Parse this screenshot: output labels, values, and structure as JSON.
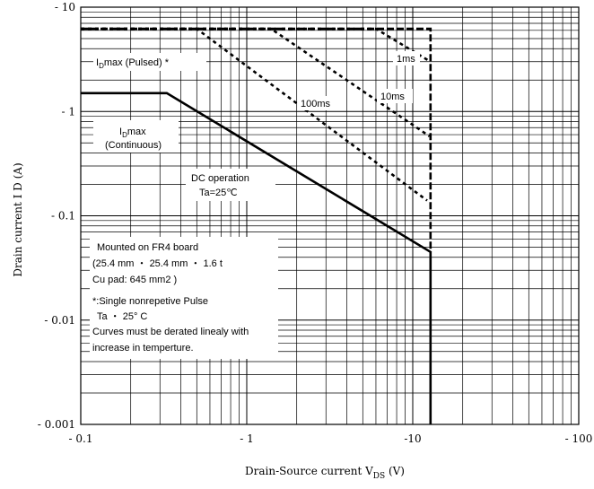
{
  "chart_data": {
    "type": "line",
    "xscale": "log",
    "yscale": "log",
    "xlim": [
      0.1,
      100
    ],
    "ylim": [
      0.001,
      10
    ],
    "grid": true,
    "xlabel_main": "Drain-Source current V",
    "xlabel_sub": "DS",
    "xlabel_unit": " (V)",
    "ylabel": "Drain current  I D (A)",
    "x_ticks": [
      {
        "value": 0.1,
        "label": "- 0.1"
      },
      {
        "value": 1,
        "label": "- 1"
      },
      {
        "value": 10,
        "label": "-10"
      },
      {
        "value": 100,
        "label": "- 100"
      }
    ],
    "y_ticks": [
      {
        "value": 10,
        "label": "- 10"
      },
      {
        "value": 1,
        "label": "- 1"
      },
      {
        "value": 0.1,
        "label": "- 0.1"
      },
      {
        "value": 0.01,
        "label": "- 0.01"
      },
      {
        "value": 0.001,
        "label": "- 0.001"
      }
    ],
    "series": [
      {
        "name": "IDmax (Continuous) / DC operation",
        "style": "solid",
        "points": [
          [
            0.1,
            1.5
          ],
          [
            0.33,
            1.5
          ],
          [
            12.8,
            0.045
          ],
          [
            12.8,
            0.001
          ]
        ]
      },
      {
        "name": "100ms",
        "style": "dotted",
        "points": [
          [
            0.1,
            6.2
          ],
          [
            0.5,
            6.2
          ],
          [
            12.2,
            0.14
          ]
        ]
      },
      {
        "name": "10ms",
        "style": "dotted",
        "points": [
          [
            0.1,
            6.2
          ],
          [
            1.4,
            6.2
          ],
          [
            12.6,
            0.58
          ]
        ]
      },
      {
        "name": "1ms",
        "style": "dotted",
        "points": [
          [
            0.1,
            6.2
          ],
          [
            6.0,
            6.2
          ],
          [
            12.8,
            3.0
          ]
        ]
      },
      {
        "name": "IDmax (Pulsed)",
        "style": "dashed",
        "points": [
          [
            0.1,
            6.2
          ],
          [
            12.8,
            6.2
          ],
          [
            12.8,
            0.045
          ]
        ]
      }
    ],
    "annotations": {
      "idmax_pulsed": {
        "main": "I",
        "sub": "D",
        "rest": "max (Pulsed) *"
      },
      "idmax_cont": {
        "main": "I",
        "sub": "D",
        "rest": "max",
        "line2": "(Continuous)"
      },
      "dc_line1": "DC operation",
      "dc_line2": "Ta=25℃",
      "ms1": "1ms",
      "ms10": "10ms",
      "ms100": "100ms",
      "notes": [
        "Mounted on FR4 board",
        "(25.4 mm  ・  25.4 mm  ・  1.6 t",
        "Cu pad: 645 mm2 )",
        "*:Single nonrepetive Pulse",
        "Ta  ・  25°  C",
        "Curves must be derated linealy with",
        "increase in temperture."
      ]
    }
  }
}
